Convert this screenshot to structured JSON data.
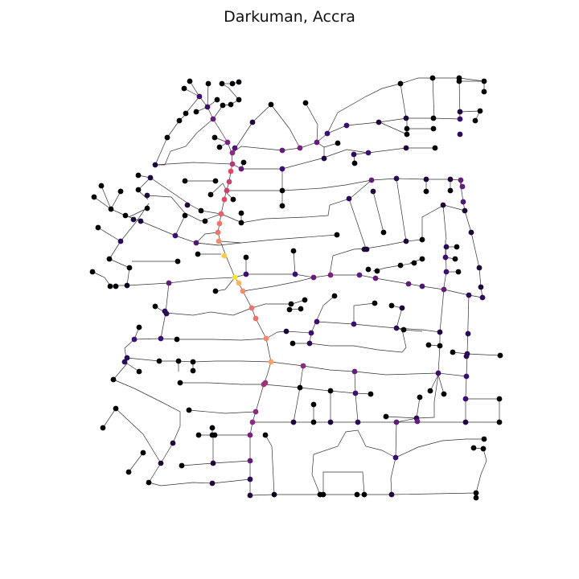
{
  "title": "Darkuman, Accra",
  "map": {
    "type": "street-network",
    "edge_color": "#333333",
    "node_colormap": "inferno",
    "colormap_stops": [
      "#000004",
      "#3b0f70",
      "#8c2981",
      "#de4968",
      "#fe9f6d",
      "#f0f921"
    ]
  }
}
